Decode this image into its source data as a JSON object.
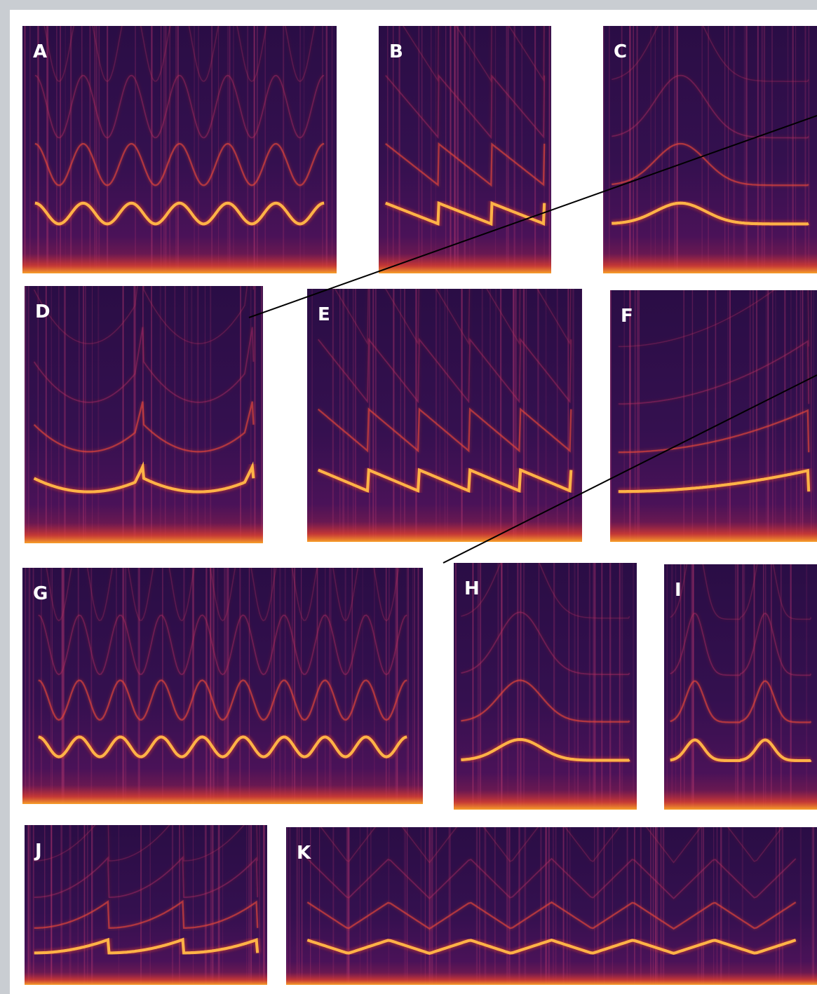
{
  "panels": [
    {
      "label": "A"
    },
    {
      "label": "B"
    },
    {
      "label": "C"
    },
    {
      "label": "D"
    },
    {
      "label": "E"
    },
    {
      "label": "F"
    },
    {
      "label": "G"
    },
    {
      "label": "H"
    },
    {
      "label": "I"
    },
    {
      "label": "J"
    },
    {
      "label": "K"
    }
  ]
}
